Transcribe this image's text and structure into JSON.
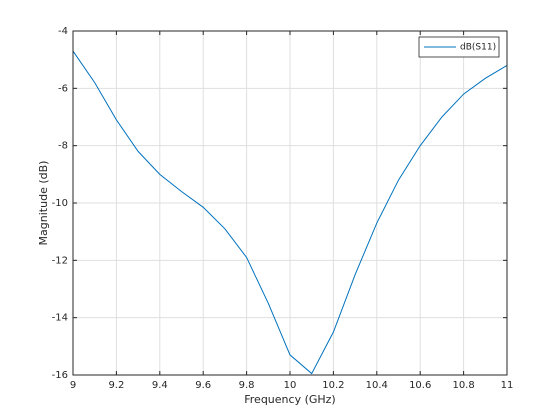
{
  "chart_data": {
    "type": "line",
    "xlabel": "Frequency (GHz)",
    "ylabel": "Magnitude (dB)",
    "x": [
      9,
      9.1,
      9.2,
      9.3,
      9.4,
      9.5,
      9.6,
      9.7,
      9.8,
      9.9,
      10,
      10.1,
      10.2,
      10.3,
      10.4,
      10.5,
      10.6,
      10.7,
      10.8,
      10.9,
      11
    ],
    "series": [
      {
        "name": "dB(S11)",
        "color": "#0072bd",
        "values": [
          -4.7,
          -5.8,
          -7.1,
          -8.2,
          -9.0,
          -9.6,
          -10.15,
          -10.9,
          -11.9,
          -13.5,
          -15.3,
          -15.95,
          -14.5,
          -12.5,
          -10.7,
          -9.2,
          -8.0,
          -7.0,
          -6.2,
          -5.65,
          -5.2
        ]
      }
    ],
    "xlim": [
      9,
      11
    ],
    "xticks": [
      9,
      9.2,
      9.4,
      9.6,
      9.8,
      10,
      10.2,
      10.4,
      10.6,
      10.8,
      11
    ],
    "ylim": [
      -16,
      -4
    ],
    "yticks": [
      -16,
      -14,
      -12,
      -10,
      -8,
      -6,
      -4
    ],
    "grid": true,
    "legend": "northeast"
  }
}
